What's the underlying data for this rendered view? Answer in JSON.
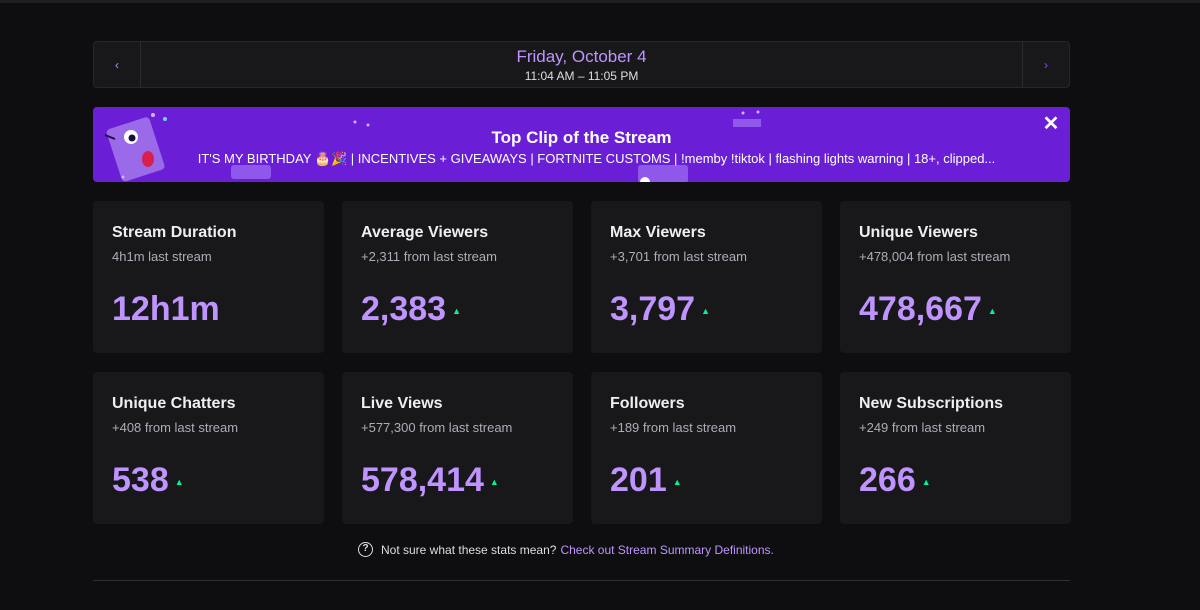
{
  "date_nav": {
    "title": "Friday, October 4",
    "time_range": "11:04 AM – 11:05 PM",
    "prev_icon": "‹",
    "next_icon": "›"
  },
  "clip": {
    "heading": "Top Clip of the Stream",
    "description": "IT'S MY BIRTHDAY 🎂🎉 | INCENTIVES + GIVEAWAYS | FORTNITE CUSTOMS | !memby !tiktok | flashing lights warning | 18+, clipped...",
    "close_icon": "✕",
    "background_color": "#6a1fd6"
  },
  "stats": [
    {
      "label": "Stream Duration",
      "sub": "4h1m last stream",
      "value": "12h1m",
      "trend": ""
    },
    {
      "label": "Average Viewers",
      "sub": "+2,311 from last stream",
      "value": "2,383",
      "trend": "up"
    },
    {
      "label": "Max Viewers",
      "sub": "+3,701 from last stream",
      "value": "3,797",
      "trend": "up"
    },
    {
      "label": "Unique Viewers",
      "sub": "+478,004 from last stream",
      "value": "478,667",
      "trend": "up"
    },
    {
      "label": "Unique Chatters",
      "sub": "+408 from last stream",
      "value": "538",
      "trend": "up"
    },
    {
      "label": "Live Views",
      "sub": "+577,300 from last stream",
      "value": "578,414",
      "trend": "up"
    },
    {
      "label": "Followers",
      "sub": "+189 from last stream",
      "value": "201",
      "trend": "up"
    },
    {
      "label": "New Subscriptions",
      "sub": "+249 from last stream",
      "value": "266",
      "trend": "up"
    }
  ],
  "trend_icon": "▲",
  "help": {
    "icon": "?",
    "text": "Not sure what these stats mean?",
    "link": "Check out Stream Summary Definitions."
  },
  "colors": {
    "accent": "#bf94ff",
    "trend_up": "#00f593",
    "background": "#0e0e10",
    "card": "#18181b"
  }
}
